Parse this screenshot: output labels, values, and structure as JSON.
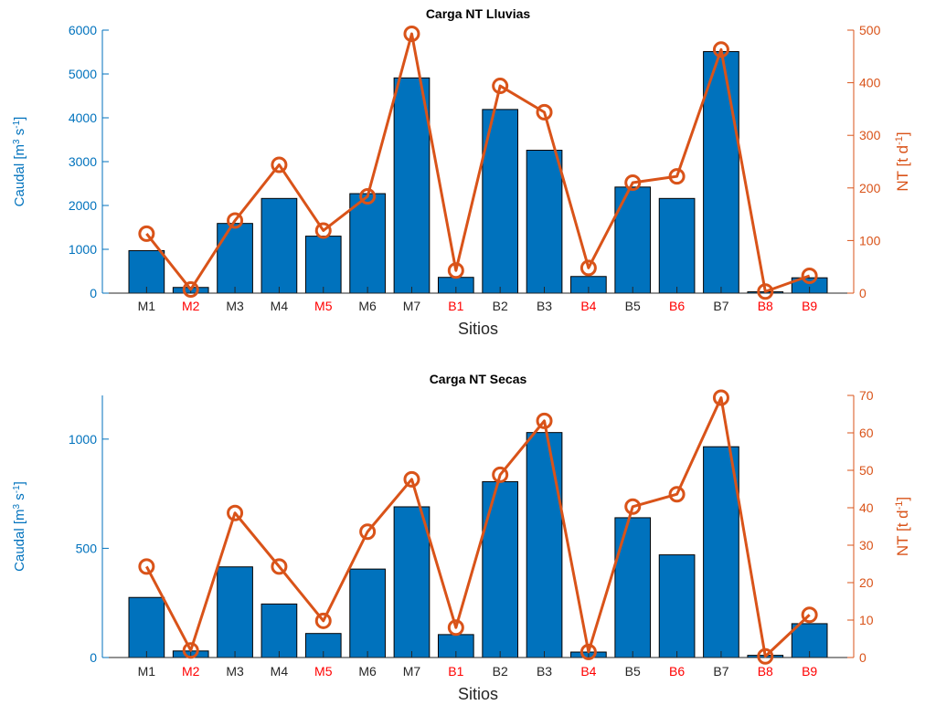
{
  "colors": {
    "bar_fill": "#0072BD",
    "line": "#D95319",
    "left_axis": "#0072BD",
    "right_axis": "#D95319",
    "tick_text_normal": "#262626",
    "tick_text_highlight": "#FF0000",
    "background": "#FFFFFF"
  },
  "chart_data": [
    {
      "type": "bar",
      "title": "Carga NT Lluvias",
      "xlabel": "Sitios",
      "ylabel_left": "Caudal [m3 s-1]",
      "ylabel_left_parts": {
        "base": "Caudal [m",
        "sup1": "3",
        "mid": " s",
        "sup2": "-1",
        "end": "]"
      },
      "ylabel_right": "NT [t d-1]",
      "ylabel_right_parts": {
        "base": "NT [t d",
        "sup2": "-1",
        "end": "]"
      },
      "categories": [
        "M1",
        "M2",
        "M3",
        "M4",
        "M5",
        "M6",
        "M7",
        "B1",
        "B2",
        "B3",
        "B4",
        "B5",
        "B6",
        "B7",
        "B8",
        "B9"
      ],
      "highlighted_categories": [
        "M2",
        "M5",
        "B1",
        "B4",
        "B6",
        "B8",
        "B9"
      ],
      "ylim_left": [
        0,
        6000
      ],
      "yticks_left": [
        0,
        1000,
        2000,
        3000,
        4000,
        5000,
        6000
      ],
      "ylim_right": [
        0,
        500
      ],
      "yticks_right": [
        0,
        100,
        200,
        300,
        400,
        500
      ],
      "grid": false,
      "series": [
        {
          "name": "Caudal",
          "type": "bar",
          "axis": "left",
          "values": [
            970,
            130,
            1590,
            2160,
            1300,
            2270,
            4910,
            360,
            4190,
            3260,
            380,
            2420,
            2160,
            5510,
            30,
            350
          ]
        },
        {
          "name": "NT",
          "type": "line",
          "axis": "right",
          "marker": "circle",
          "values": [
            113,
            7,
            138,
            244,
            119,
            184,
            493,
            43,
            394,
            344,
            48,
            210,
            222,
            463,
            3,
            33
          ]
        }
      ]
    },
    {
      "type": "bar",
      "title": "Carga NT Secas",
      "xlabel": "Sitios",
      "ylabel_left": "Caudal [m3 s-1]",
      "ylabel_left_parts": {
        "base": "Caudal [m",
        "sup1": "3",
        "mid": " s",
        "sup2": "-1",
        "end": "]"
      },
      "ylabel_right": "NT [t d-1]",
      "ylabel_right_parts": {
        "base": "NT [t d",
        "sup2": "-1",
        "end": "]"
      },
      "categories": [
        "M1",
        "M2",
        "M3",
        "M4",
        "M5",
        "M6",
        "M7",
        "B1",
        "B2",
        "B3",
        "B4",
        "B5",
        "B6",
        "B7",
        "B8",
        "B9"
      ],
      "highlighted_categories": [
        "M2",
        "M5",
        "B1",
        "B4",
        "B6",
        "B8",
        "B9"
      ],
      "ylim_left": [
        0,
        1200
      ],
      "yticks_left": [
        0,
        500,
        1000
      ],
      "ylim_right": [
        0,
        70
      ],
      "yticks_right": [
        0,
        10,
        20,
        30,
        40,
        50,
        60,
        70
      ],
      "grid": false,
      "series": [
        {
          "name": "Caudal",
          "type": "bar",
          "axis": "left",
          "values": [
            275,
            30,
            415,
            245,
            110,
            405,
            690,
            105,
            805,
            1030,
            25,
            640,
            470,
            965,
            10,
            155
          ]
        },
        {
          "name": "NT",
          "type": "line",
          "axis": "right",
          "marker": "circle",
          "values": [
            24.3,
            1.9,
            38.6,
            24.3,
            9.8,
            33.6,
            47.6,
            8.0,
            48.8,
            63.2,
            1.5,
            40.3,
            43.6,
            69.4,
            0.3,
            11.4
          ]
        }
      ]
    }
  ]
}
